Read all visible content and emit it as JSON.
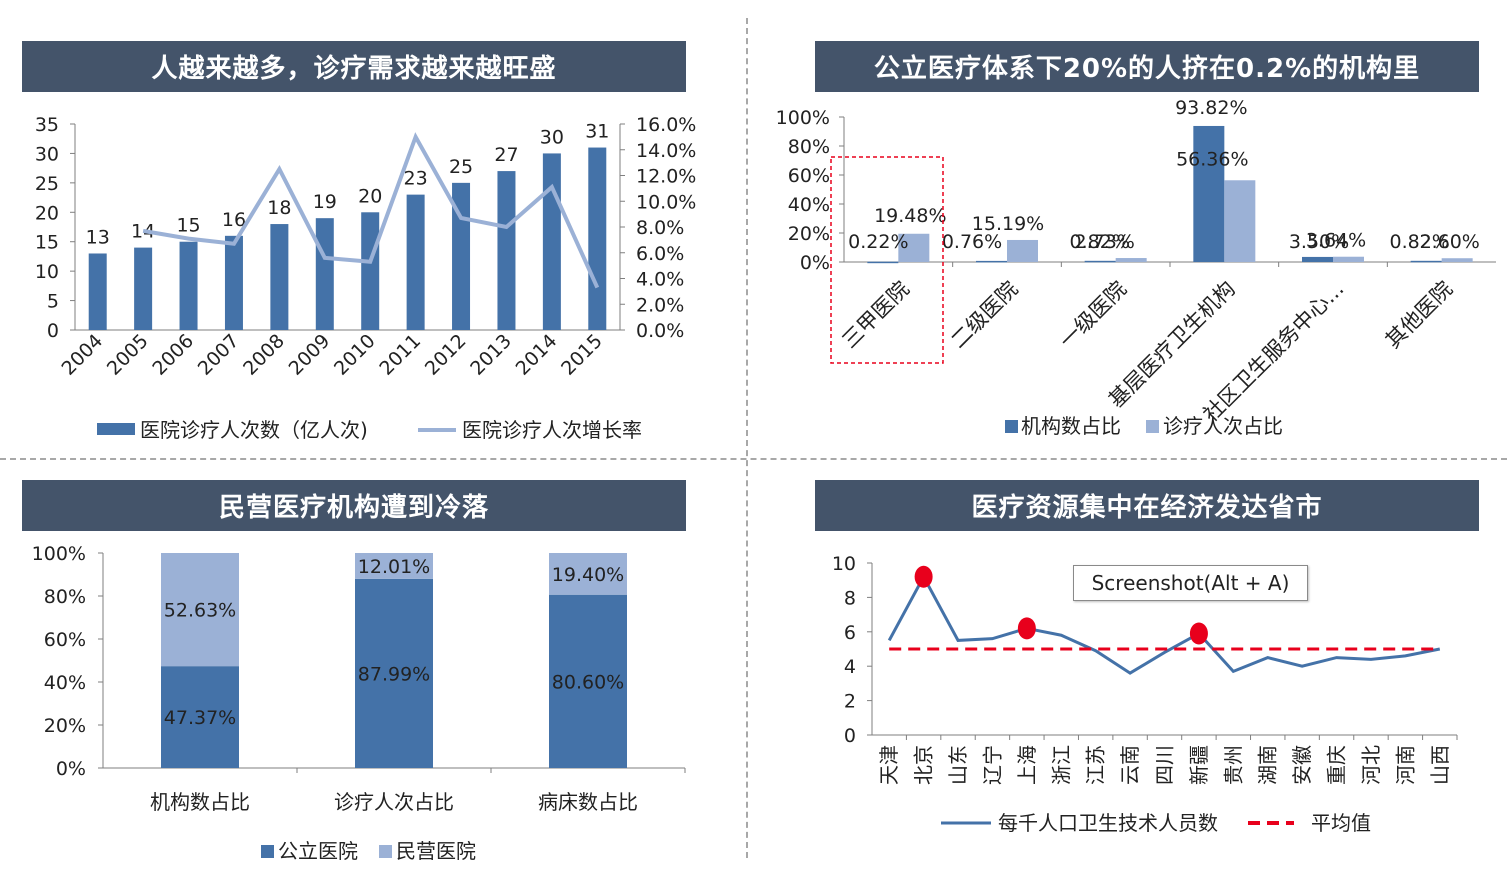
{
  "colors": {
    "dark_blue": "#4472a8",
    "light_blue": "#9bb1d6",
    "title_bg": "#44546a",
    "red": "#e8001c"
  },
  "tooltip": {
    "text": "Screenshot(Alt + A)"
  },
  "panels": {
    "p1": {
      "title": "人越来越多，诊疗需求越来越旺盛"
    },
    "p2": {
      "title": "公立医疗体系下20%的人挤在0.2%的机构里"
    },
    "p3": {
      "title": "民营医疗机构遭到冷落"
    },
    "p4": {
      "title": "医疗资源集中在经济发达省市"
    }
  },
  "chart_data": [
    {
      "id": "visits",
      "type": "bar",
      "categories": [
        "2004",
        "2005",
        "2006",
        "2007",
        "2008",
        "2009",
        "2010",
        "2011",
        "2012",
        "2013",
        "2014",
        "2015"
      ],
      "series": [
        {
          "name": "医院诊疗人次数（亿人次)",
          "type": "bar",
          "axis": "left",
          "values": [
            13,
            14,
            15,
            16,
            18,
            19,
            20,
            23,
            25,
            27,
            30,
            31
          ],
          "labels": [
            "13",
            "14",
            "15",
            "16",
            "18",
            "19",
            "20",
            "23",
            "25",
            "27",
            "30",
            "31"
          ]
        },
        {
          "name": "医院诊疗人次增长率",
          "type": "line",
          "axis": "right",
          "values": [
            null,
            7.7,
            7.1,
            6.7,
            12.5,
            5.6,
            5.3,
            15.0,
            8.7,
            8.0,
            11.1,
            3.3
          ]
        }
      ],
      "ylim": [
        0,
        35
      ],
      "yticks": [
        "0",
        "5",
        "10",
        "15",
        "20",
        "25",
        "30",
        "35"
      ],
      "y2lim": [
        0,
        16
      ],
      "y2ticks": [
        "0.0%",
        "2.0%",
        "4.0%",
        "6.0%",
        "8.0%",
        "10.0%",
        "12.0%",
        "14.0%",
        "16.0%"
      ],
      "legend": "bottom"
    },
    {
      "id": "share",
      "type": "bar",
      "categories": [
        "三甲医院",
        "二级医院",
        "一级医院",
        "基层医疗卫生机构",
        "社区卫生服务中心...",
        "其他医院"
      ],
      "series": [
        {
          "name": "机构数占比",
          "values": [
            0.22,
            0.76,
            0.82,
            93.82,
            3.5,
            0.82
          ],
          "labels": [
            "0.22%",
            "0.76%",
            "0.82%",
            "93.82%",
            "3.50%",
            "0.82%"
          ]
        },
        {
          "name": "诊疗人次占比",
          "values": [
            19.48,
            15.19,
            2.73,
            56.36,
            3.64,
            2.6
          ],
          "labels": [
            "19.48%",
            "15.19%",
            "2.73%",
            "56.36%",
            "3.64%",
            "2.60%"
          ]
        }
      ],
      "ylim": [
        0,
        100
      ],
      "yticks": [
        "0%",
        "20%",
        "40%",
        "60%",
        "80%",
        "100%"
      ],
      "highlight": "三甲医院",
      "legend": "bottom"
    },
    {
      "id": "private",
      "type": "bar",
      "stacked": true,
      "categories": [
        "机构数占比",
        "诊疗人次占比",
        "病床数占比"
      ],
      "series": [
        {
          "name": "公立医院",
          "values": [
            47.37,
            87.99,
            80.6
          ],
          "labels": [
            "47.37%",
            "87.99%",
            "80.60%"
          ]
        },
        {
          "name": "民营医院",
          "values": [
            52.63,
            12.01,
            19.4
          ],
          "labels": [
            "52.63%",
            "12.01%",
            "19.40%"
          ]
        }
      ],
      "ylim": [
        0,
        100
      ],
      "yticks": [
        "0%",
        "20%",
        "40%",
        "60%",
        "80%",
        "100%"
      ],
      "legend": "bottom"
    },
    {
      "id": "provinces",
      "type": "line",
      "categories": [
        "天津",
        "北京",
        "山东",
        "辽宁",
        "上海",
        "浙江",
        "江苏",
        "云南",
        "四川",
        "新疆",
        "贵州",
        "湖南",
        "安徽",
        "重庆",
        "河北",
        "河南",
        "山西"
      ],
      "series": [
        {
          "name": "每千人口卫生技术人员数",
          "values": [
            5.5,
            9.2,
            5.5,
            5.6,
            6.2,
            5.8,
            4.9,
            3.6,
            4.8,
            5.9,
            3.7,
            4.5,
            4.0,
            4.5,
            4.4,
            4.6,
            5.0
          ]
        },
        {
          "name": "平均值",
          "values": [
            5.0,
            5.0,
            5.0,
            5.0,
            5.0,
            5.0,
            5.0,
            5.0,
            5.0,
            5.0,
            5.0,
            5.0,
            5.0,
            5.0,
            5.0,
            5.0,
            5.0
          ]
        }
      ],
      "highlight_points": [
        "北京",
        "上海",
        "新疆"
      ],
      "ylim": [
        0,
        10
      ],
      "yticks": [
        "0",
        "2",
        "4",
        "6",
        "8",
        "10"
      ],
      "legend": "bottom"
    }
  ]
}
